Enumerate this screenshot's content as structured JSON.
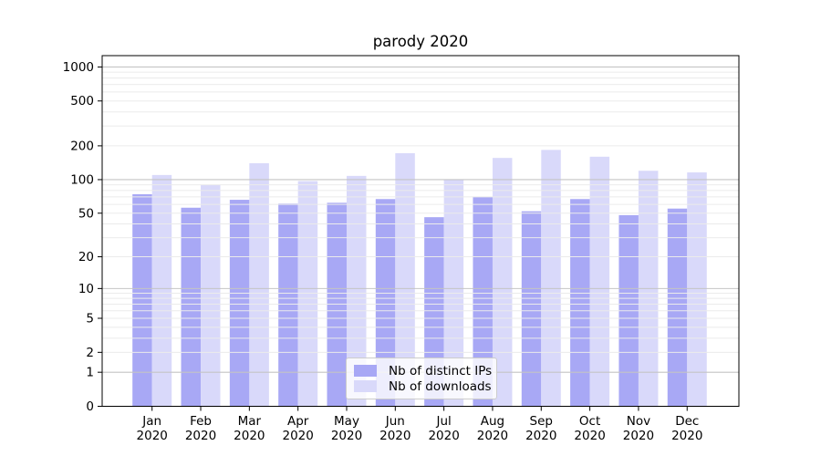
{
  "chart_data": {
    "type": "bar",
    "title": "parody 2020",
    "scale": "log1p",
    "xlabel": "",
    "ylabel": "",
    "categories": [
      "Jan",
      "Feb",
      "Mar",
      "Apr",
      "May",
      "Jun",
      "Jul",
      "Aug",
      "Sep",
      "Oct",
      "Nov",
      "Dec"
    ],
    "category_year": "2020",
    "series": [
      {
        "name": "Nb of distinct IPs",
        "color": "#a8a8f5",
        "values": [
          74,
          56,
          66,
          61,
          62,
          67,
          46,
          70,
          52,
          67,
          48,
          55
        ]
      },
      {
        "name": "Nb of downloads",
        "color": "#d9d9fa",
        "values": [
          110,
          90,
          140,
          97,
          108,
          172,
          100,
          156,
          184,
          160,
          120,
          116
        ]
      }
    ],
    "yticks": [
      0,
      1,
      2,
      5,
      10,
      20,
      50,
      100,
      200,
      500,
      1000
    ],
    "ylim": [
      0,
      1260
    ],
    "grid": {
      "major_at": [
        1,
        10,
        100,
        1000
      ],
      "major_color": "#c4c4c4",
      "minor_color": "#ebebeb"
    },
    "legend": {
      "position": "lower center",
      "entries": [
        "Nb of distinct IPs",
        "Nb of downloads"
      ]
    }
  }
}
